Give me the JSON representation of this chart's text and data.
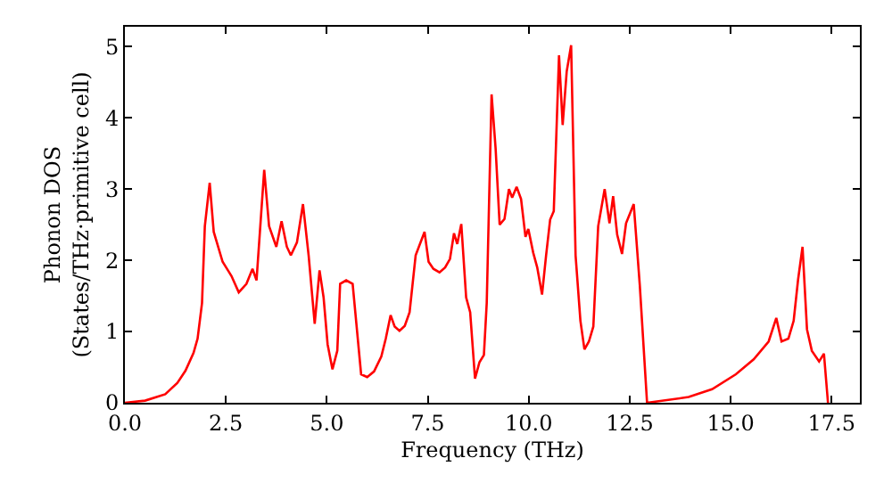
{
  "chart_data": {
    "type": "line",
    "xlabel": "Frequency (THz)",
    "ylabel": "Phonon DOS\n(States/THz·primitive cell)",
    "xlim": [
      0,
      18.2
    ],
    "ylim": [
      0,
      5.28
    ],
    "xticks": [
      {
        "value": 0,
        "label": "0.0"
      },
      {
        "value": 2.5,
        "label": "2.5"
      },
      {
        "value": 5,
        "label": "5.0"
      },
      {
        "value": 7.5,
        "label": "7.5"
      },
      {
        "value": 10,
        "label": "10.0"
      },
      {
        "value": 12.5,
        "label": "12.5"
      },
      {
        "value": 15,
        "label": "15.0"
      },
      {
        "value": 17.5,
        "label": "17.5"
      }
    ],
    "yticks": [
      0,
      1,
      2,
      3,
      4,
      5
    ],
    "marker": "none",
    "line_style": "solid",
    "series": [
      {
        "color": "#ff0000",
        "x": [
          0,
          0.5,
          1.0,
          1.3,
          1.5,
          1.7,
          1.8,
          1.91,
          1.98,
          2.1,
          2.2,
          2.42,
          2.64,
          2.82,
          3.01,
          3.16,
          3.26,
          3.45,
          3.57,
          3.75,
          3.88,
          4.01,
          4.11,
          4.26,
          4.41,
          4.55,
          4.7,
          4.82,
          4.92,
          5.02,
          5.14,
          5.26,
          5.33,
          5.48,
          5.64,
          5.85,
          6.0,
          6.17,
          6.35,
          6.46,
          6.58,
          6.68,
          6.8,
          6.93,
          7.05,
          7.2,
          7.42,
          7.52,
          7.64,
          7.79,
          7.93,
          8.05,
          8.15,
          8.23,
          8.33,
          8.45,
          8.55,
          8.67,
          8.78,
          8.89,
          8.96,
          9.08,
          9.18,
          9.28,
          9.4,
          9.51,
          9.59,
          9.7,
          9.81,
          9.92,
          9.99,
          10.11,
          10.21,
          10.33,
          10.43,
          10.53,
          10.62,
          10.75,
          10.84,
          10.94,
          11.05,
          11.16,
          11.28,
          11.38,
          11.49,
          11.6,
          11.72,
          11.88,
          12.0,
          12.09,
          12.19,
          12.31,
          12.41,
          12.6,
          12.75,
          12.93,
          13.96,
          14.54,
          15.13,
          15.57,
          15.94,
          16.13,
          16.26,
          16.43,
          16.56,
          16.67,
          16.78,
          16.89,
          17.01,
          17.19,
          17.31,
          17.41
        ],
        "values": [
          0,
          0.03,
          0.12,
          0.28,
          0.45,
          0.7,
          0.9,
          1.4,
          2.48,
          3.09,
          2.4,
          1.98,
          1.78,
          1.55,
          1.67,
          1.88,
          1.72,
          3.27,
          2.48,
          2.19,
          2.55,
          2.19,
          2.07,
          2.25,
          2.79,
          2.07,
          1.11,
          1.86,
          1.48,
          0.82,
          0.47,
          0.73,
          1.67,
          1.72,
          1.67,
          0.4,
          0.36,
          0.44,
          0.65,
          0.9,
          1.23,
          1.07,
          1.01,
          1.08,
          1.27,
          2.07,
          2.4,
          1.98,
          1.88,
          1.83,
          1.9,
          2.02,
          2.38,
          2.23,
          2.51,
          1.48,
          1.27,
          0.34,
          0.57,
          0.67,
          1.4,
          4.33,
          3.57,
          2.5,
          2.58,
          3.0,
          2.88,
          3.03,
          2.86,
          2.33,
          2.44,
          2.11,
          1.9,
          1.52,
          2.07,
          2.57,
          2.69,
          4.88,
          3.9,
          4.65,
          5.02,
          2.07,
          1.15,
          0.75,
          0.86,
          1.07,
          2.48,
          3.0,
          2.52,
          2.9,
          2.36,
          2.09,
          2.52,
          2.79,
          1.65,
          0,
          0.08,
          0.19,
          0.4,
          0.61,
          0.86,
          1.19,
          0.86,
          0.9,
          1.15,
          1.73,
          2.19,
          1.03,
          0.73,
          0.58,
          0.69,
          0
        ]
      }
    ]
  }
}
